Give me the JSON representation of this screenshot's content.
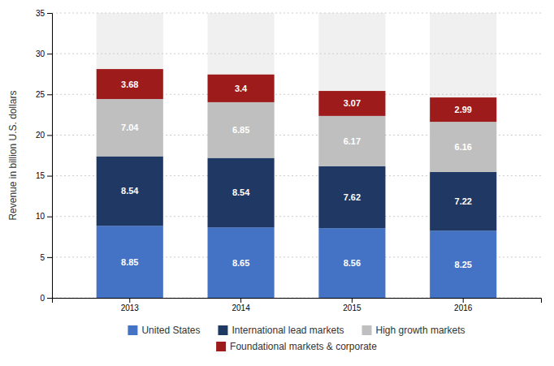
{
  "chart_data": {
    "type": "bar",
    "stacked": true,
    "categories": [
      "2013",
      "2014",
      "2015",
      "2016"
    ],
    "series": [
      {
        "name": "United States",
        "color": "#4472C4",
        "values": [
          8.85,
          8.65,
          8.56,
          8.25
        ]
      },
      {
        "name": "International lead markets",
        "color": "#1F3864",
        "values": [
          8.54,
          8.54,
          7.62,
          7.22
        ]
      },
      {
        "name": "High growth markets",
        "color": "#BFBFBF",
        "values": [
          7.04,
          6.85,
          6.17,
          6.16
        ]
      },
      {
        "name": "Foundational markets & corporate",
        "color": "#9E1B1B",
        "values": [
          3.68,
          3.4,
          3.07,
          2.99
        ]
      }
    ],
    "ylabel": "Revenue in billion U.S. dollars",
    "ylim": [
      0,
      35
    ],
    "yticks": [
      0,
      5,
      10,
      15,
      20,
      25,
      30,
      35
    ],
    "grid": true,
    "data_labels": true,
    "legend": "bottom"
  }
}
